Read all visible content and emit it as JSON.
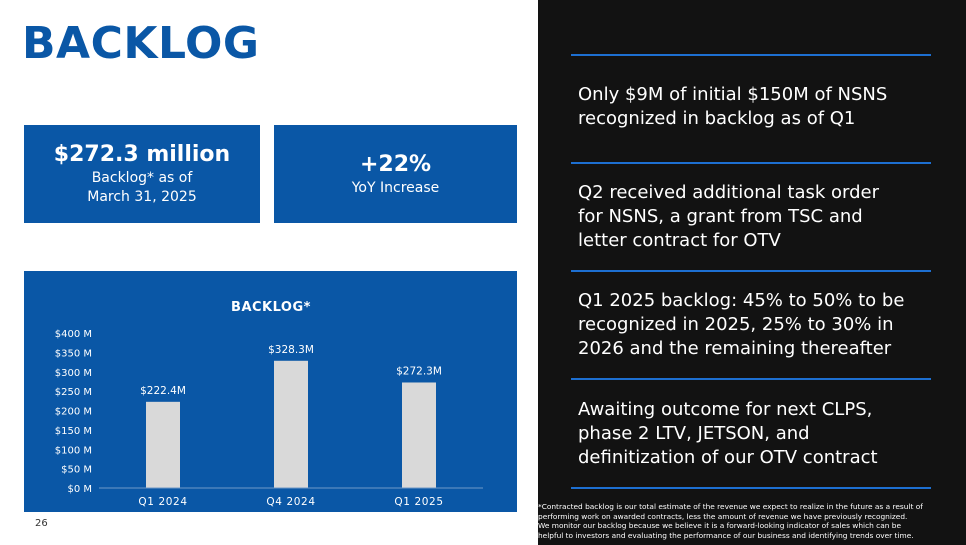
{
  "slide": {
    "title": "BACKLOG",
    "page_number": "26",
    "accent_color": "#0a57a6",
    "divider_color": "#1d6fd1",
    "right_panel_color": "#121212"
  },
  "kpis": [
    {
      "value": "$272.3 million",
      "line1": "Backlog* as of",
      "line2": "March 31, 2025"
    },
    {
      "value": "+22%",
      "line1": "YoY Increase"
    }
  ],
  "bullets": [
    [
      "Only $9M of initial $150M of NSNS",
      "recognized in backlog as of Q1"
    ],
    [
      "Q2 received additional task order",
      "for NSNS, a grant from TSC and",
      "letter contract for OTV"
    ],
    [
      "Q1 2025 backlog: 45% to 50% to be",
      "recognized in 2025, 25% to 30% in",
      "2026 and the remaining thereafter"
    ],
    [
      "Awaiting outcome for next CLPS,",
      "phase 2 LTV, JETSON, and",
      "definitization of our OTV contract"
    ]
  ],
  "footnote": [
    "*Contracted backlog is our total estimate of the revenue we expect to realize in the future as a result of",
    "performing work on awarded contracts, less the amount of revenue we have previously recognized.",
    "We monitor our backlog because we believe it is a forward-looking indicator of sales which can be",
    "helpful to investors and evaluating the performance of our business and identifying trends over time."
  ],
  "chart_data": {
    "type": "bar",
    "title": "BACKLOG*",
    "categories": [
      "Q1 2024",
      "Q4 2024",
      "Q1 2025"
    ],
    "values": [
      222.4,
      328.3,
      272.3
    ],
    "value_labels": [
      "$222.4M",
      "$328.3M",
      "$272.3M"
    ],
    "yticks": [
      0,
      50,
      100,
      150,
      200,
      250,
      300,
      350,
      400
    ],
    "ytick_labels": [
      "$0 M",
      "$50 M",
      "$100 M",
      "$150 M",
      "$200 M",
      "$250 M",
      "$300 M",
      "$350 M",
      "$400 M"
    ],
    "ylim": [
      0,
      400
    ],
    "xlabel": "",
    "ylabel": "",
    "grid": false,
    "bar_color": "#d9d9d9",
    "background_color": "#0a57a6"
  }
}
